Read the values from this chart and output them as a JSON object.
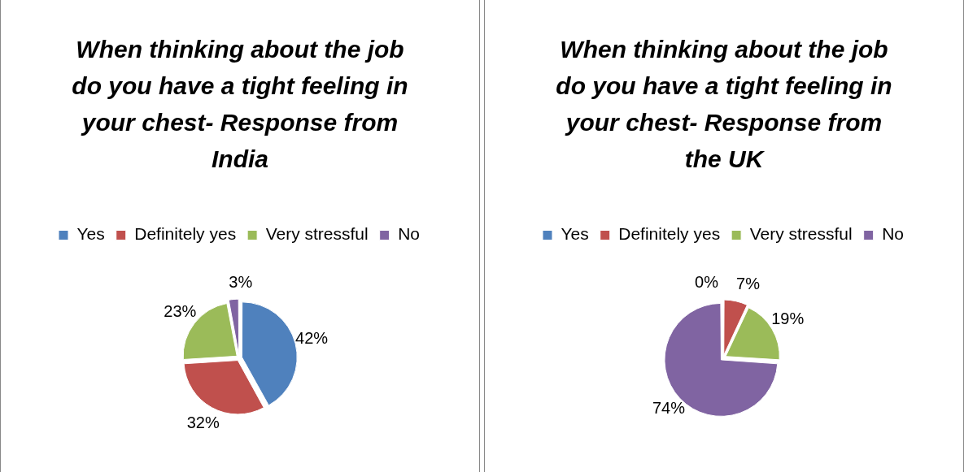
{
  "chart_data": [
    {
      "type": "pie",
      "title": "When thinking about the job do you have a tight feeling in your chest- Response from India",
      "categories": [
        "Yes",
        "Definitely yes",
        "Very stressful",
        "No"
      ],
      "values": [
        42,
        32,
        23,
        3
      ],
      "value_labels": [
        "42%",
        "32%",
        "23%",
        "3%"
      ],
      "colors": [
        "#4f81bd",
        "#c0504d",
        "#9bbb59",
        "#8064a2"
      ],
      "legend": "top"
    },
    {
      "type": "pie",
      "title": "When thinking about the job do you have a tight feeling in your chest- Response from the UK",
      "categories": [
        "Yes",
        "Definitely yes",
        "Very stressful",
        "No"
      ],
      "values": [
        0,
        7,
        19,
        74
      ],
      "value_labels": [
        "0%",
        "7%",
        "19%",
        "74%"
      ],
      "colors": [
        "#4f81bd",
        "#c0504d",
        "#9bbb59",
        "#8064a2"
      ],
      "legend": "top"
    }
  ]
}
